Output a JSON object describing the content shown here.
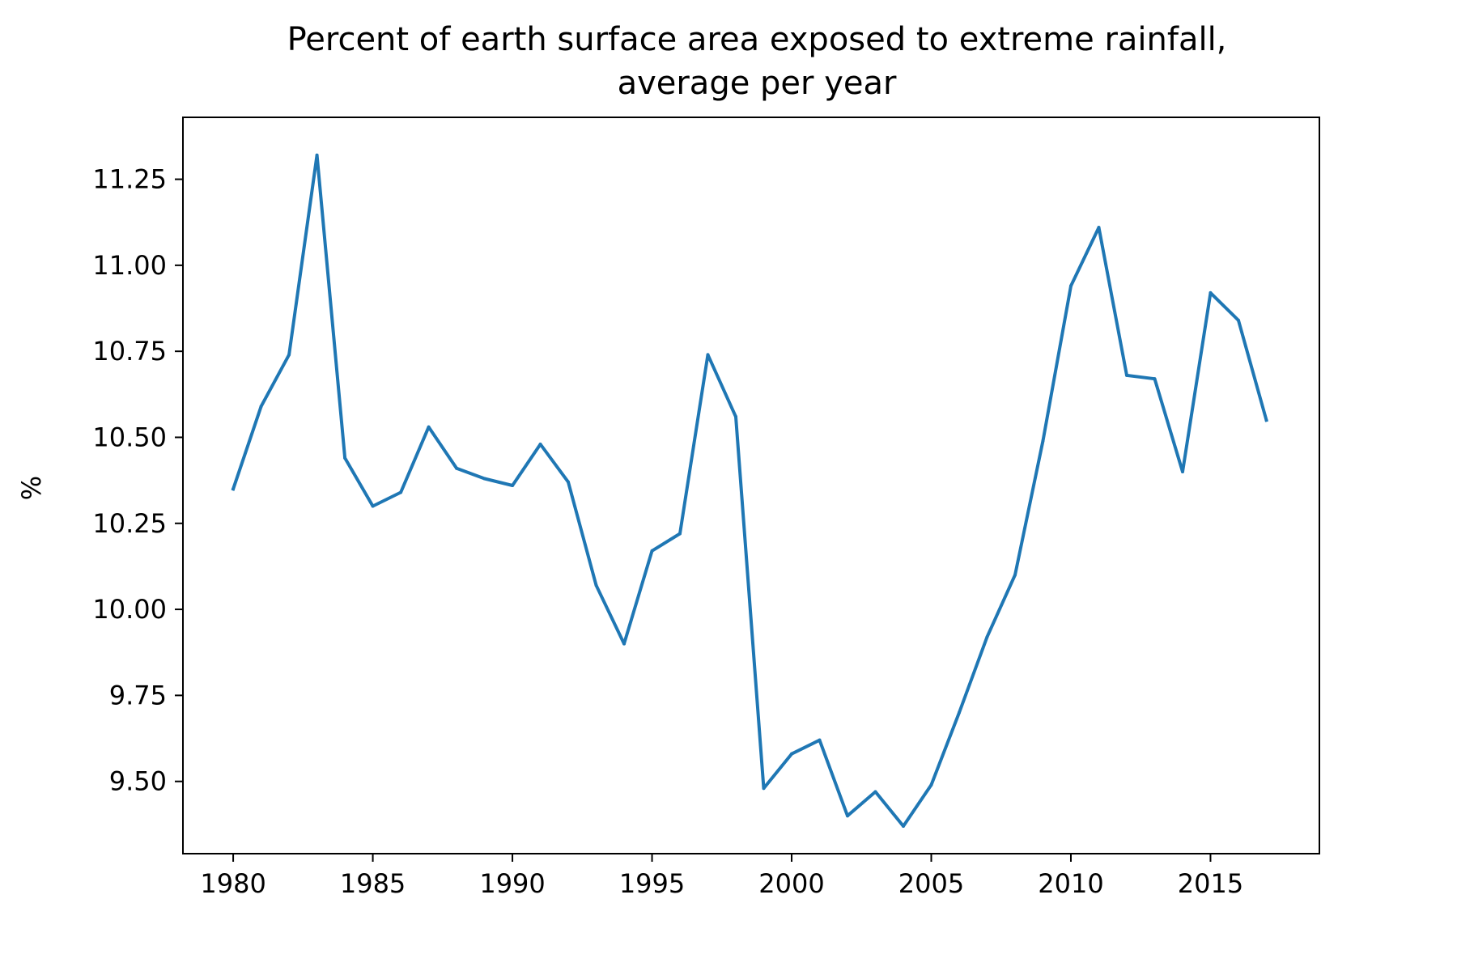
{
  "chart_data": {
    "type": "line",
    "title_line1": "Percent of earth surface area exposed to extreme rainfall,",
    "title_line2": "average per year",
    "xlabel": "",
    "ylabel": "%",
    "xlim": [
      1978.2,
      2018.9
    ],
    "ylim": [
      9.29,
      11.43
    ],
    "xticks": [
      "1980",
      "1985",
      "1990",
      "1995",
      "2000",
      "2005",
      "2010",
      "2015"
    ],
    "yticks": [
      "9.50",
      "9.75",
      "10.00",
      "10.25",
      "10.50",
      "10.75",
      "11.00",
      "11.25"
    ],
    "grid": false,
    "line_color": "#1f77b4",
    "x": [
      1980,
      1981,
      1982,
      1983,
      1984,
      1985,
      1986,
      1987,
      1988,
      1989,
      1990,
      1991,
      1992,
      1993,
      1994,
      1995,
      1996,
      1997,
      1998,
      1999,
      2000,
      2001,
      2002,
      2003,
      2004,
      2005,
      2006,
      2007,
      2008,
      2009,
      2010,
      2011,
      2012,
      2013,
      2014,
      2015,
      2016,
      2017
    ],
    "y": [
      10.35,
      10.59,
      10.74,
      11.32,
      10.44,
      10.3,
      10.34,
      10.53,
      10.41,
      10.38,
      10.36,
      10.48,
      10.37,
      10.07,
      9.9,
      10.17,
      10.22,
      10.74,
      10.56,
      9.48,
      9.58,
      9.62,
      9.4,
      9.47,
      9.37,
      9.49,
      9.7,
      9.92,
      10.1,
      10.49,
      10.94,
      11.11,
      10.68,
      10.67,
      10.4,
      10.92,
      10.84,
      10.55
    ]
  }
}
